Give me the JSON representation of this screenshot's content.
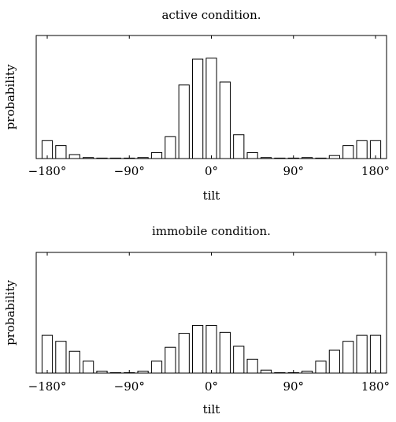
{
  "chart_data": [
    {
      "type": "bar",
      "title": "active condition.",
      "xlabel": "tilt",
      "ylabel": "probability",
      "x_ticks": [
        "−180°",
        "−90°",
        "0°",
        "90°",
        "180°"
      ],
      "tick_values": [
        -180,
        -90,
        0,
        90,
        180
      ],
      "xlim": [
        -180,
        180
      ],
      "ylim": [
        0,
        1
      ],
      "bin_width_deg": 15,
      "x": [
        -180,
        -165,
        -150,
        -135,
        -120,
        -105,
        -90,
        -75,
        -60,
        -45,
        -30,
        -15,
        0,
        15,
        30,
        45,
        60,
        75,
        90,
        105,
        120,
        135,
        150,
        165,
        180
      ],
      "values": [
        0.18,
        0.13,
        0.04,
        0.01,
        0.0,
        0.0,
        0.0,
        0.01,
        0.06,
        0.22,
        0.74,
        1.0,
        1.01,
        0.77,
        0.24,
        0.06,
        0.01,
        0.0,
        0.0,
        0.01,
        0.0,
        0.03,
        0.13,
        0.18,
        0.18
      ],
      "grid": false,
      "bar_fill": "#ffffff",
      "bar_stroke": "#000000"
    },
    {
      "type": "bar",
      "title": "immobile condition.",
      "xlabel": "tilt",
      "ylabel": "probability",
      "x_ticks": [
        "−180°",
        "−90°",
        "0°",
        "90°",
        "180°"
      ],
      "tick_values": [
        -180,
        -90,
        0,
        90,
        180
      ],
      "xlim": [
        -180,
        180
      ],
      "ylim": [
        0,
        1
      ],
      "bin_width_deg": 15,
      "x": [
        -180,
        -165,
        -150,
        -135,
        -120,
        -105,
        -90,
        -75,
        -60,
        -45,
        -30,
        -15,
        0,
        15,
        30,
        45,
        60,
        75,
        90,
        105,
        120,
        135,
        150,
        165,
        180
      ],
      "values": [
        0.38,
        0.32,
        0.22,
        0.12,
        0.02,
        0.0,
        0.0,
        0.02,
        0.12,
        0.26,
        0.4,
        0.48,
        0.48,
        0.41,
        0.27,
        0.14,
        0.03,
        0.0,
        0.0,
        0.02,
        0.12,
        0.23,
        0.32,
        0.38,
        0.38
      ],
      "grid": false,
      "bar_fill": "#ffffff",
      "bar_stroke": "#000000"
    }
  ]
}
